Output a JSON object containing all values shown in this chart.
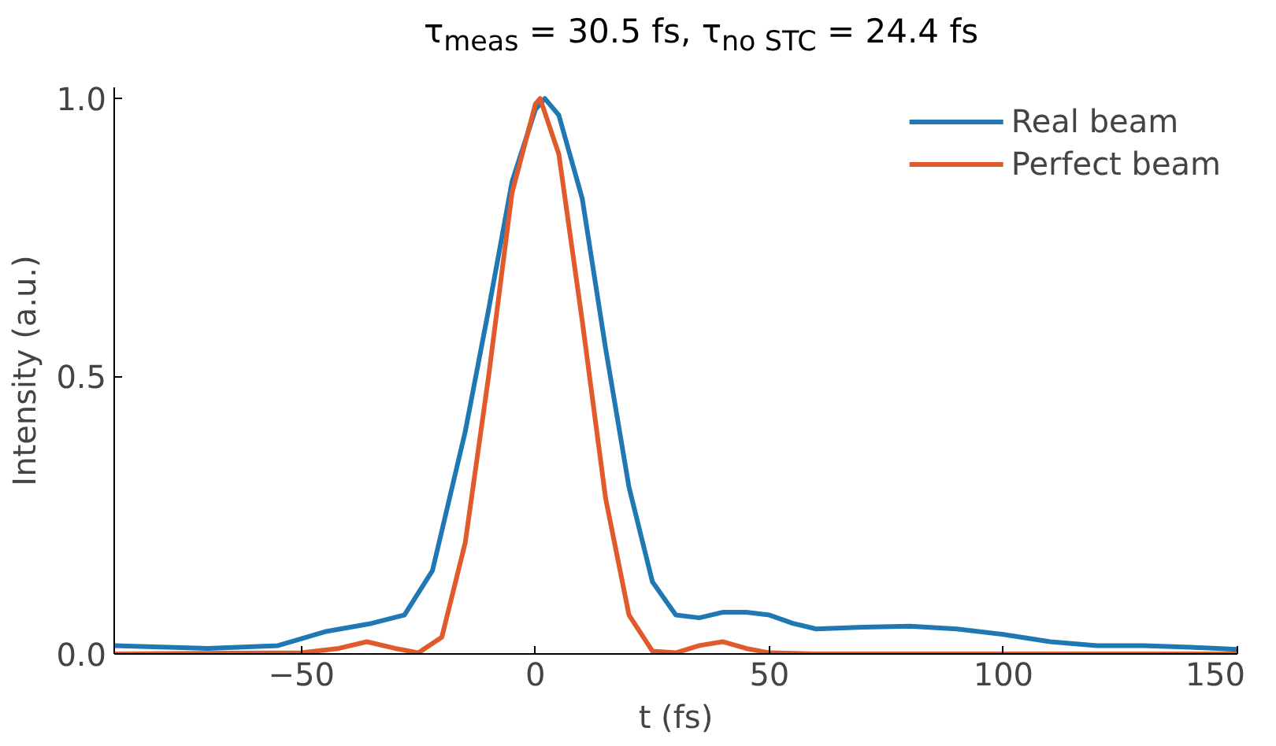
{
  "chart_data": {
    "type": "line",
    "title": "τ$_{meas}$ = 30.5 fs, τ$_{no STC}$ = 24.4 fs",
    "xlabel": "t (fs)",
    "ylabel": "Intensity (a.u.)",
    "xlim": [
      -90,
      150
    ],
    "ylim": [
      0,
      1.02
    ],
    "xticks": [
      {
        "value": -50,
        "label": "−50"
      },
      0,
      50,
      100,
      150
    ],
    "yticks": [
      {
        "value": 0,
        "label": "0.0"
      },
      0.5,
      {
        "value": 1,
        "label": "1.0"
      }
    ],
    "grid": false,
    "legend": "top right",
    "marker": "none",
    "line_style": "solid",
    "series": [
      {
        "name": "Real beam",
        "color": "#1f77b4",
        "x": [
          -90,
          -70,
          -55,
          -45,
          -35,
          -28,
          -22,
          -15,
          -10,
          -5,
          0,
          2,
          5,
          10,
          15,
          20,
          25,
          30,
          35,
          40,
          45,
          50,
          55,
          60,
          70,
          80,
          90,
          100,
          110,
          120,
          130,
          140,
          150
        ],
        "values": [
          0.015,
          0.01,
          0.015,
          0.04,
          0.055,
          0.07,
          0.15,
          0.4,
          0.62,
          0.85,
          0.98,
          1.0,
          0.97,
          0.82,
          0.55,
          0.3,
          0.13,
          0.07,
          0.065,
          0.075,
          0.075,
          0.07,
          0.055,
          0.045,
          0.048,
          0.05,
          0.045,
          0.035,
          0.022,
          0.015,
          0.015,
          0.012,
          0.008
        ]
      },
      {
        "name": "Perfect beam",
        "color": "#e05a2b",
        "x": [
          -90,
          -50,
          -42,
          -36,
          -30,
          -25,
          -20,
          -15,
          -10,
          -5,
          0,
          1,
          5,
          10,
          15,
          20,
          25,
          30,
          35,
          40,
          45,
          50,
          60,
          150
        ],
        "values": [
          0,
          0.002,
          0.01,
          0.022,
          0.01,
          0.002,
          0.03,
          0.2,
          0.5,
          0.83,
          0.99,
          1.0,
          0.9,
          0.6,
          0.28,
          0.07,
          0.005,
          0.002,
          0.015,
          0.022,
          0.01,
          0.002,
          0,
          0
        ]
      }
    ]
  }
}
